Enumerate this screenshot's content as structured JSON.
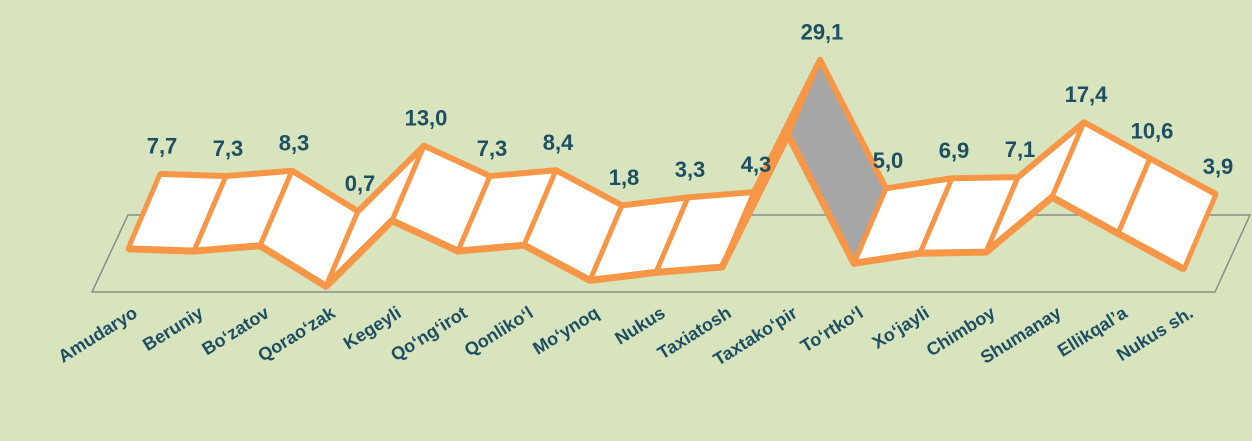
{
  "chart_data": {
    "type": "line",
    "categories": [
      "Amudaryo",
      "Beruniy",
      "Bo‘zatov",
      "Qorao‘zak",
      "Kegeyli",
      "Qo‘ng‘irot",
      "Qonliko‘l",
      "Mo‘ynoq",
      "Nukus",
      "Taxiatosh",
      "Taxtako‘pir",
      "To‘rtko‘l",
      "Xo‘jayli",
      "Chimboy",
      "Shumanay",
      "Ellikqal’a",
      "Nukus sh."
    ],
    "values": [
      7.7,
      7.3,
      8.3,
      0.7,
      13.0,
      7.3,
      8.4,
      1.8,
      3.3,
      4.3,
      29.1,
      5.0,
      6.9,
      7.1,
      17.4,
      10.6,
      3.9
    ],
    "value_labels": [
      "7,7",
      "7,3",
      "8,3",
      "0,7",
      "13,0",
      "7,3",
      "8,4",
      "1,8",
      "3,3",
      "4,3",
      "29,1",
      "5,0",
      "6,9",
      "7,1",
      "17,4",
      "10,6",
      "3,9"
    ],
    "color": "#f79646",
    "ylim": [
      0,
      30
    ]
  }
}
